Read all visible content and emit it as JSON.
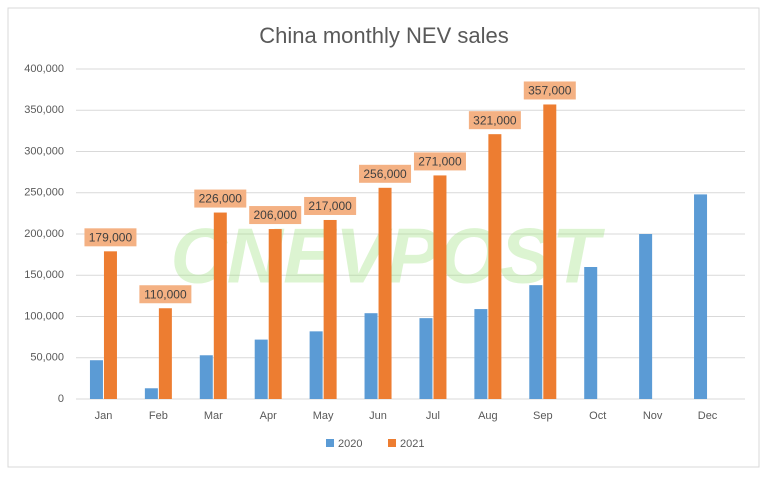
{
  "chart_data": {
    "type": "bar",
    "title": "China monthly NEV sales",
    "watermark": "CNEVPOST",
    "categories": [
      "Jan",
      "Feb",
      "Mar",
      "Apr",
      "May",
      "Jun",
      "Jul",
      "Aug",
      "Sep",
      "Oct",
      "Nov",
      "Dec"
    ],
    "series": [
      {
        "name": "2020",
        "color": "#5b9bd5",
        "values": [
          47000,
          13000,
          53000,
          72000,
          82000,
          104000,
          98000,
          109000,
          138000,
          160000,
          200000,
          248000
        ]
      },
      {
        "name": "2021",
        "color": "#ed7d31",
        "values": [
          179000,
          110000,
          226000,
          206000,
          217000,
          256000,
          271000,
          321000,
          357000,
          null,
          null,
          null
        ],
        "value_labels": [
          "179,000",
          "110,000",
          "226,000",
          "206,000",
          "217,000",
          "256,000",
          "271,000",
          "321,000",
          "357,000",
          null,
          null,
          null
        ]
      }
    ],
    "ylim": [
      0,
      400000
    ],
    "yticks": [
      0,
      {
        "value": 50000,
        "label": "50,000"
      },
      {
        "value": 100000,
        "label": "100,000"
      },
      {
        "value": 150000,
        "label": "150,000"
      },
      {
        "value": 200000,
        "label": "200,000"
      },
      {
        "value": 250000,
        "label": "250,000"
      },
      {
        "value": 300000,
        "label": "300,000"
      },
      {
        "value": 350000,
        "label": "350,000"
      },
      {
        "value": 400000,
        "label": "400,000"
      }
    ],
    "grid": true,
    "legend": "bottom"
  }
}
